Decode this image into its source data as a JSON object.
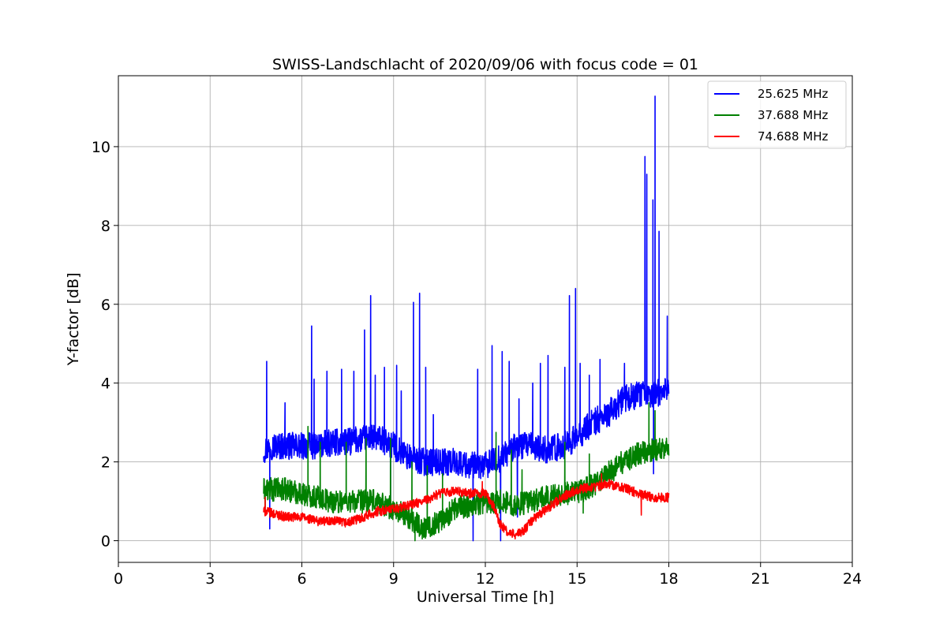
{
  "chart_data": {
    "type": "line",
    "title": "SWISS-Landschlacht of 2020/09/06 with focus code = 01",
    "xlabel": "Universal Time [h]",
    "ylabel": "Y-factor [dB]",
    "xlim": [
      0,
      24
    ],
    "ylim": [
      -0.55,
      11.8
    ],
    "xticks": [
      0,
      3,
      6,
      9,
      12,
      15,
      18,
      21,
      24
    ],
    "yticks": [
      0,
      2,
      4,
      6,
      8,
      10
    ],
    "grid": true,
    "legend_position": "top-right",
    "series": [
      {
        "name": "25.625 MHz",
        "color": "#0000ff",
        "x": [
          4.75,
          5.0,
          5.5,
          6.0,
          6.5,
          7.0,
          7.5,
          8.0,
          8.5,
          9.0,
          9.5,
          10.0,
          10.5,
          11.0,
          11.5,
          12.0,
          12.5,
          13.0,
          13.5,
          14.0,
          14.5,
          15.0,
          15.5,
          16.0,
          16.5,
          17.0,
          17.5,
          18.0
        ],
        "y": [
          2.3,
          2.4,
          2.4,
          2.4,
          2.4,
          2.5,
          2.5,
          2.6,
          2.6,
          2.4,
          2.1,
          2.0,
          2.0,
          2.0,
          1.9,
          1.9,
          2.1,
          2.4,
          2.4,
          2.3,
          2.4,
          2.6,
          3.0,
          3.2,
          3.6,
          3.7,
          3.7,
          3.9
        ],
        "spikes": [
          [
            4.85,
            4.55
          ],
          [
            5.45,
            3.5
          ],
          [
            6.32,
            5.45
          ],
          [
            6.4,
            4.1
          ],
          [
            6.82,
            4.3
          ],
          [
            7.3,
            4.35
          ],
          [
            7.7,
            4.3
          ],
          [
            8.05,
            5.35
          ],
          [
            8.25,
            6.22
          ],
          [
            8.4,
            4.2
          ],
          [
            8.7,
            4.4
          ],
          [
            9.1,
            4.45
          ],
          [
            9.25,
            3.8
          ],
          [
            9.65,
            6.05
          ],
          [
            9.85,
            6.28
          ],
          [
            10.05,
            4.4
          ],
          [
            10.3,
            3.2
          ],
          [
            11.75,
            4.35
          ],
          [
            12.22,
            4.95
          ],
          [
            12.55,
            4.8
          ],
          [
            12.78,
            4.55
          ],
          [
            13.1,
            3.6
          ],
          [
            13.55,
            4.0
          ],
          [
            13.8,
            4.5
          ],
          [
            14.05,
            4.7
          ],
          [
            14.6,
            4.4
          ],
          [
            14.75,
            6.22
          ],
          [
            14.95,
            6.4
          ],
          [
            15.1,
            4.5
          ],
          [
            15.4,
            4.2
          ],
          [
            15.75,
            4.6
          ],
          [
            16.55,
            4.5
          ],
          [
            17.22,
            9.75
          ],
          [
            17.28,
            9.3
          ],
          [
            17.48,
            8.65
          ],
          [
            17.55,
            11.28
          ],
          [
            17.68,
            7.85
          ],
          [
            17.95,
            5.7
          ]
        ],
        "dips": [
          [
            4.95,
            0.3
          ],
          [
            11.6,
            0.0
          ],
          [
            12.5,
            0.0
          ],
          [
            13.05,
            0.6
          ],
          [
            17.5,
            1.7
          ],
          [
            8.9,
            0.6
          ]
        ]
      },
      {
        "name": "37.688 MHz",
        "color": "#008000",
        "x": [
          4.75,
          5.0,
          5.5,
          6.0,
          6.5,
          7.0,
          7.5,
          8.0,
          8.5,
          9.0,
          9.5,
          10.0,
          10.5,
          11.0,
          11.5,
          12.0,
          12.5,
          13.0,
          13.5,
          14.0,
          14.5,
          15.0,
          15.5,
          16.0,
          16.5,
          17.0,
          17.5,
          18.0
        ],
        "y": [
          1.3,
          1.3,
          1.3,
          1.2,
          1.1,
          1.0,
          1.0,
          1.0,
          1.0,
          0.8,
          0.6,
          0.3,
          0.5,
          0.8,
          0.9,
          1.0,
          1.0,
          0.9,
          1.0,
          1.1,
          1.2,
          1.2,
          1.4,
          1.7,
          2.0,
          2.2,
          2.3,
          2.4
        ],
        "spikes": [
          [
            6.2,
            2.9
          ],
          [
            6.6,
            2.5
          ],
          [
            7.45,
            2.5
          ],
          [
            8.1,
            2.6
          ],
          [
            8.9,
            2.6
          ],
          [
            9.6,
            2.0
          ],
          [
            10.1,
            1.9
          ],
          [
            10.6,
            1.7
          ],
          [
            12.35,
            2.75
          ],
          [
            12.85,
            2.3
          ],
          [
            13.2,
            1.8
          ],
          [
            14.6,
            2.5
          ],
          [
            15.4,
            2.2
          ],
          [
            17.35,
            3.5
          ],
          [
            17.55,
            3.3
          ]
        ],
        "dips": [
          [
            4.8,
            0.65
          ],
          [
            9.7,
            0.0
          ],
          [
            10.0,
            0.1
          ],
          [
            15.2,
            0.7
          ]
        ]
      },
      {
        "name": "74.688 MHz",
        "color": "#ff0000",
        "x": [
          4.75,
          5.0,
          5.5,
          6.0,
          6.5,
          7.0,
          7.5,
          8.0,
          8.5,
          9.0,
          9.5,
          10.0,
          10.5,
          11.0,
          11.5,
          12.0,
          12.25,
          12.5,
          12.75,
          13.0,
          13.25,
          13.5,
          14.0,
          14.5,
          15.0,
          15.5,
          16.0,
          16.5,
          17.0,
          17.5,
          18.0
        ],
        "y": [
          0.75,
          0.7,
          0.6,
          0.6,
          0.5,
          0.5,
          0.45,
          0.6,
          0.75,
          0.8,
          0.9,
          1.0,
          1.2,
          1.25,
          1.2,
          1.2,
          0.9,
          0.4,
          0.2,
          0.15,
          0.25,
          0.5,
          0.8,
          1.1,
          1.3,
          1.35,
          1.45,
          1.35,
          1.2,
          1.1,
          1.1
        ],
        "spikes": [
          [
            4.8,
            1.1
          ],
          [
            11.9,
            1.5
          ],
          [
            15.8,
            1.7
          ]
        ],
        "dips": [
          [
            17.1,
            0.65
          ]
        ]
      }
    ]
  }
}
